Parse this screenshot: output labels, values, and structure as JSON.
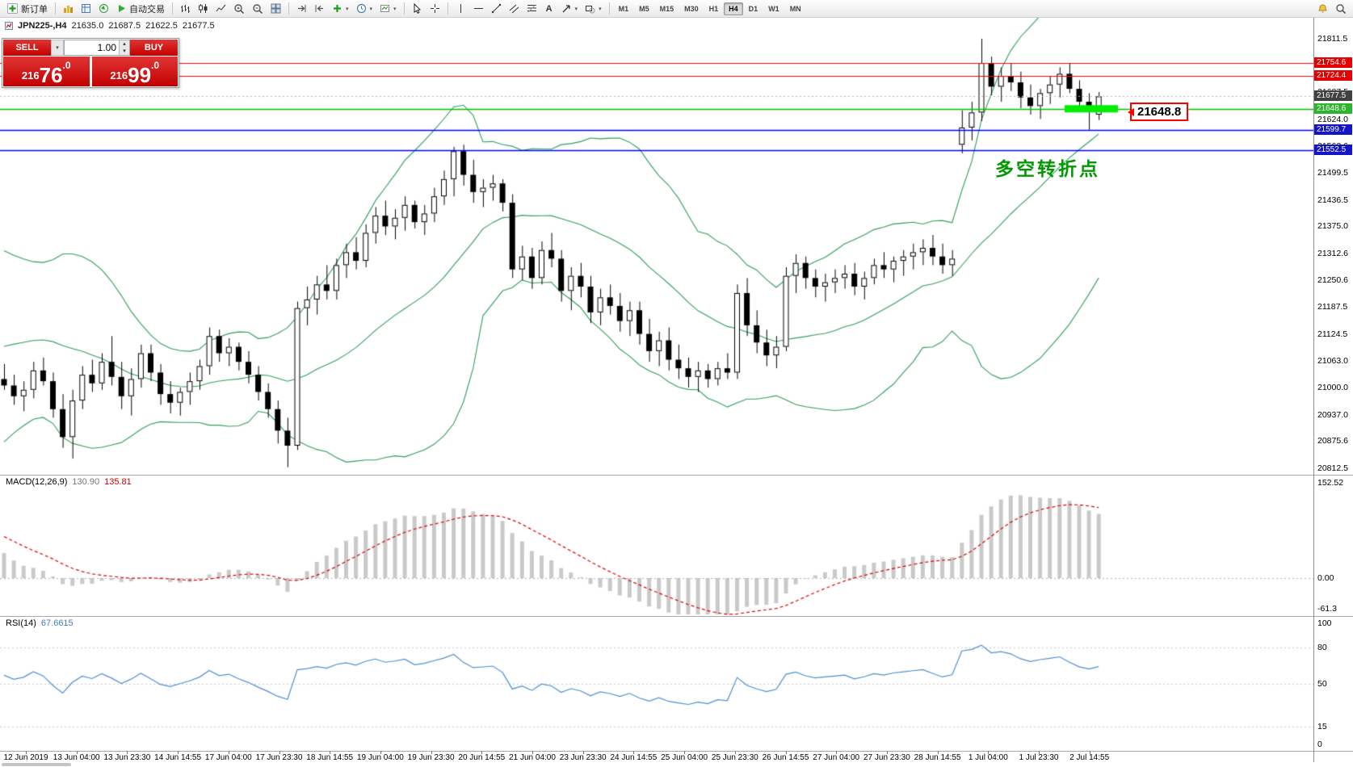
{
  "colors": {
    "up_candle": "#ffffff",
    "down_candle": "#000000",
    "candle_border": "#000000",
    "bollinger": "#2e9e5b",
    "hline_red": "#ff0000",
    "hline_blue": "#0000ff",
    "hline_green": "#00c300",
    "highlight_green": "#00ef00",
    "macd_bar": "#c9c9c9",
    "macd_signal": "#e00000",
    "rsi_line": "#4a8fd4",
    "tag_red": "#e40000",
    "tag_green": "#2db52d",
    "tag_blue": "#1515c8",
    "tag_dark": "#404040",
    "annotation_green": "#009900",
    "callout_border": "#ff0000"
  },
  "icons": {
    "dropdown_arrow": "▾",
    "spin_up": "▴",
    "spin_down": "▾",
    "text_tool": "A"
  },
  "toolbar": {
    "new_order_label": "新订单",
    "autotrading_label": "自动交易",
    "timeframes": [
      "M1",
      "M5",
      "M15",
      "M30",
      "H1",
      "H4",
      "D1",
      "W1",
      "MN"
    ],
    "active_timeframe": "H4"
  },
  "chart_header": {
    "symbol": "JPN225-,H4",
    "open": "21635.0",
    "high": "21687.5",
    "low": "21622.5",
    "close": "21677.5"
  },
  "trade_panel": {
    "sell_label": "SELL",
    "buy_label": "BUY",
    "volume": "1.00",
    "sell_price": {
      "prefix": "216",
      "big": "76",
      "suffix": ".0"
    },
    "buy_price": {
      "prefix": "216",
      "big": "99",
      "suffix": ".0"
    }
  },
  "annotation": {
    "text": "多空转折点"
  },
  "callout": {
    "text": "21648.8"
  },
  "price_axis": {
    "regular": [
      "21811.5",
      "21687.5",
      "21624.0",
      "21562.6",
      "21499.5",
      "21436.5",
      "21375.0",
      "21312.6",
      "21250.6",
      "21187.5",
      "21124.5",
      "21063.0",
      "21000.0",
      "20937.0",
      "20875.6",
      "20812.5"
    ],
    "tags": [
      {
        "value": "21754.6",
        "type": "red"
      },
      {
        "value": "21724.4",
        "type": "red"
      },
      {
        "value": "21677.5",
        "type": "dark"
      },
      {
        "value": "21648.6",
        "type": "green"
      },
      {
        "value": "21599.7",
        "type": "blue"
      },
      {
        "value": "21552.5",
        "type": "blue"
      }
    ]
  },
  "hlines": [
    {
      "price": 21754.6,
      "color": "#ff0000",
      "width": 1.1
    },
    {
      "price": 21724.4,
      "color": "#ff0000",
      "width": 1.1
    },
    {
      "price": 21648.6,
      "color": "#00c300",
      "width": 1.6
    },
    {
      "price": 21599.7,
      "color": "#0000ff",
      "width": 1.3
    },
    {
      "price": 21552.5,
      "color": "#0000ff",
      "width": 1.3
    }
  ],
  "macd_panel": {
    "name": "MACD(12,26,9)",
    "main_value": "130.90",
    "signal_value": "135.81",
    "axis": [
      "152.52",
      "0.00",
      "-61.3"
    ]
  },
  "rsi_panel": {
    "name": "RSI(14)",
    "value": "67.6615",
    "axis": [
      "100",
      "80",
      "50",
      "15",
      "0"
    ],
    "levels": [
      80,
      50,
      15
    ]
  },
  "time_axis": [
    "12 Jun 2019",
    "13 Jun 04:00",
    "13 Jun 23:30",
    "14 Jun 14:55",
    "17 Jun 04:00",
    "17 Jun 23:30",
    "18 Jun 14:55",
    "19 Jun 04:00",
    "19 Jun 23:30",
    "20 Jun 14:55",
    "21 Jun 04:00",
    "23 Jun 23:30",
    "24 Jun 14:55",
    "25 Jun 04:00",
    "25 Jun 23:30",
    "26 Jun 14:55",
    "27 Jun 04:00",
    "27 Jun 23:30",
    "28 Jun 14:55",
    "1 Jul 04:00",
    "1 Jul 23:30",
    "2 Jul 14:55"
  ],
  "chart_data": {
    "type": "candlestick",
    "symbol": "JPN225-",
    "timeframe": "H4",
    "price_range": [
      20812.5,
      21811.5
    ],
    "highlight_price": 21648.6,
    "bid_price": 21677.5,
    "overlays": [
      {
        "name": "Bollinger Bands",
        "period": 20,
        "deviation": 2
      }
    ],
    "indicators": [
      {
        "name": "MACD",
        "params": "12,26,9",
        "values": [
          130.9,
          135.81
        ],
        "range": [
          -61.3,
          152.52
        ]
      },
      {
        "name": "RSI",
        "params": "14",
        "value": 67.6615,
        "range": [
          0,
          100
        ]
      }
    ],
    "prehistory_closes": [
      20850,
      20880,
      20910,
      20950,
      20990,
      21030,
      21070,
      21110,
      21150,
      21190,
      21220,
      21245,
      21250,
      21240,
      21210,
      21170,
      21130,
      21090,
      21050,
      21030
    ],
    "candles": [
      [
        21020,
        21055,
        20995,
        21005
      ],
      [
        21005,
        21030,
        20960,
        20980
      ],
      [
        20980,
        21015,
        20945,
        20995
      ],
      [
        20995,
        21060,
        20975,
        21040
      ],
      [
        21040,
        21070,
        21005,
        21015
      ],
      [
        21015,
        21035,
        20930,
        20950
      ],
      [
        20950,
        20985,
        20860,
        20885
      ],
      [
        20885,
        20995,
        20835,
        20970
      ],
      [
        20970,
        21050,
        20950,
        21030
      ],
      [
        21030,
        21065,
        20990,
        21010
      ],
      [
        21010,
        21080,
        20995,
        21060
      ],
      [
        21060,
        21120,
        21005,
        21025
      ],
      [
        21025,
        21060,
        20950,
        20980
      ],
      [
        20980,
        21045,
        20935,
        21020
      ],
      [
        21020,
        21100,
        21000,
        21080
      ],
      [
        21080,
        21100,
        21015,
        21035
      ],
      [
        21035,
        21055,
        20960,
        20985
      ],
      [
        20985,
        21015,
        20940,
        20965
      ],
      [
        20965,
        21000,
        20935,
        20990
      ],
      [
        20990,
        21035,
        20960,
        21015
      ],
      [
        21015,
        21065,
        20995,
        21050
      ],
      [
        21050,
        21140,
        21030,
        21120
      ],
      [
        21120,
        21135,
        21060,
        21080
      ],
      [
        21080,
        21115,
        21050,
        21095
      ],
      [
        21095,
        21105,
        21040,
        21060
      ],
      [
        21060,
        21085,
        21010,
        21030
      ],
      [
        21030,
        21050,
        20970,
        20990
      ],
      [
        20990,
        21010,
        20930,
        20950
      ],
      [
        20950,
        20970,
        20870,
        20900
      ],
      [
        20900,
        20930,
        20815,
        20865
      ],
      [
        20865,
        21200,
        20855,
        21185
      ],
      [
        21185,
        21235,
        21145,
        21205
      ],
      [
        21205,
        21260,
        21170,
        21240
      ],
      [
        21240,
        21285,
        21205,
        21225
      ],
      [
        21225,
        21300,
        21205,
        21285
      ],
      [
        21285,
        21335,
        21255,
        21315
      ],
      [
        21315,
        21350,
        21275,
        21295
      ],
      [
        21295,
        21380,
        21280,
        21360
      ],
      [
        21360,
        21420,
        21335,
        21400
      ],
      [
        21400,
        21435,
        21355,
        21375
      ],
      [
        21375,
        21415,
        21345,
        21395
      ],
      [
        21395,
        21445,
        21365,
        21425
      ],
      [
        21425,
        21435,
        21370,
        21385
      ],
      [
        21385,
        21425,
        21355,
        21405
      ],
      [
        21405,
        21465,
        21385,
        21445
      ],
      [
        21445,
        21505,
        21425,
        21485
      ],
      [
        21485,
        21560,
        21445,
        21550
      ],
      [
        21550,
        21565,
        21470,
        21495
      ],
      [
        21495,
        21530,
        21430,
        21455
      ],
      [
        21455,
        21485,
        21420,
        21465
      ],
      [
        21465,
        21495,
        21435,
        21475
      ],
      [
        21475,
        21485,
        21410,
        21430
      ],
      [
        21430,
        21450,
        21255,
        21275
      ],
      [
        21275,
        21330,
        21250,
        21305
      ],
      [
        21305,
        21325,
        21230,
        21255
      ],
      [
        21255,
        21340,
        21240,
        21320
      ],
      [
        21320,
        21360,
        21280,
        21300
      ],
      [
        21300,
        21320,
        21200,
        21225
      ],
      [
        21225,
        21280,
        21180,
        21260
      ],
      [
        21260,
        21290,
        21210,
        21235
      ],
      [
        21235,
        21260,
        21150,
        21175
      ],
      [
        21175,
        21230,
        21145,
        21210
      ],
      [
        21210,
        21240,
        21170,
        21190
      ],
      [
        21190,
        21220,
        21130,
        21155
      ],
      [
        21155,
        21200,
        21120,
        21180
      ],
      [
        21180,
        21200,
        21100,
        21125
      ],
      [
        21125,
        21160,
        21060,
        21085
      ],
      [
        21085,
        21130,
        21050,
        21110
      ],
      [
        21110,
        21140,
        21040,
        21065
      ],
      [
        21065,
        21100,
        21020,
        21045
      ],
      [
        21045,
        21070,
        21000,
        21025
      ],
      [
        21025,
        21060,
        20990,
        21040
      ],
      [
        21040,
        21055,
        21000,
        21020
      ],
      [
        21020,
        21060,
        21005,
        21045
      ],
      [
        21045,
        21080,
        21020,
        21035
      ],
      [
        21035,
        21240,
        21020,
        21220
      ],
      [
        21220,
        21255,
        21120,
        21145
      ],
      [
        21145,
        21180,
        21080,
        21105
      ],
      [
        21105,
        21135,
        21050,
        21075
      ],
      [
        21075,
        21120,
        21045,
        21095
      ],
      [
        21095,
        21280,
        21085,
        21260
      ],
      [
        21260,
        21310,
        21220,
        21290
      ],
      [
        21290,
        21305,
        21230,
        21255
      ],
      [
        21255,
        21275,
        21210,
        21235
      ],
      [
        21235,
        21265,
        21200,
        21245
      ],
      [
        21245,
        21275,
        21220,
        21255
      ],
      [
        21255,
        21285,
        21230,
        21265
      ],
      [
        21265,
        21290,
        21215,
        21235
      ],
      [
        21235,
        21270,
        21205,
        21255
      ],
      [
        21255,
        21300,
        21240,
        21285
      ],
      [
        21285,
        21315,
        21255,
        21275
      ],
      [
        21275,
        21305,
        21245,
        21295
      ],
      [
        21295,
        21320,
        21260,
        21305
      ],
      [
        21305,
        21335,
        21275,
        21315
      ],
      [
        21315,
        21345,
        21285,
        21325
      ],
      [
        21325,
        21355,
        21285,
        21305
      ],
      [
        21305,
        21335,
        21265,
        21285
      ],
      [
        21285,
        21320,
        21260,
        21300
      ],
      [
        21565,
        21645,
        21545,
        21605
      ],
      [
        21605,
        21665,
        21575,
        21640
      ],
      [
        21640,
        21811.5,
        21620,
        21755
      ],
      [
        21755,
        21770,
        21680,
        21700
      ],
      [
        21700,
        21745,
        21665,
        21725
      ],
      [
        21725,
        21755,
        21690,
        21710
      ],
      [
        21710,
        21735,
        21650,
        21675
      ],
      [
        21675,
        21705,
        21635,
        21655
      ],
      [
        21655,
        21695,
        21625,
        21685
      ],
      [
        21685,
        21725,
        21660,
        21705
      ],
      [
        21705,
        21745,
        21675,
        21730
      ],
      [
        21730,
        21754.6,
        21685,
        21695
      ],
      [
        21695,
        21715,
        21645,
        21665
      ],
      [
        21665,
        21685,
        21599.7,
        21650
      ],
      [
        21635,
        21687.5,
        21622.5,
        21677.5
      ]
    ]
  }
}
